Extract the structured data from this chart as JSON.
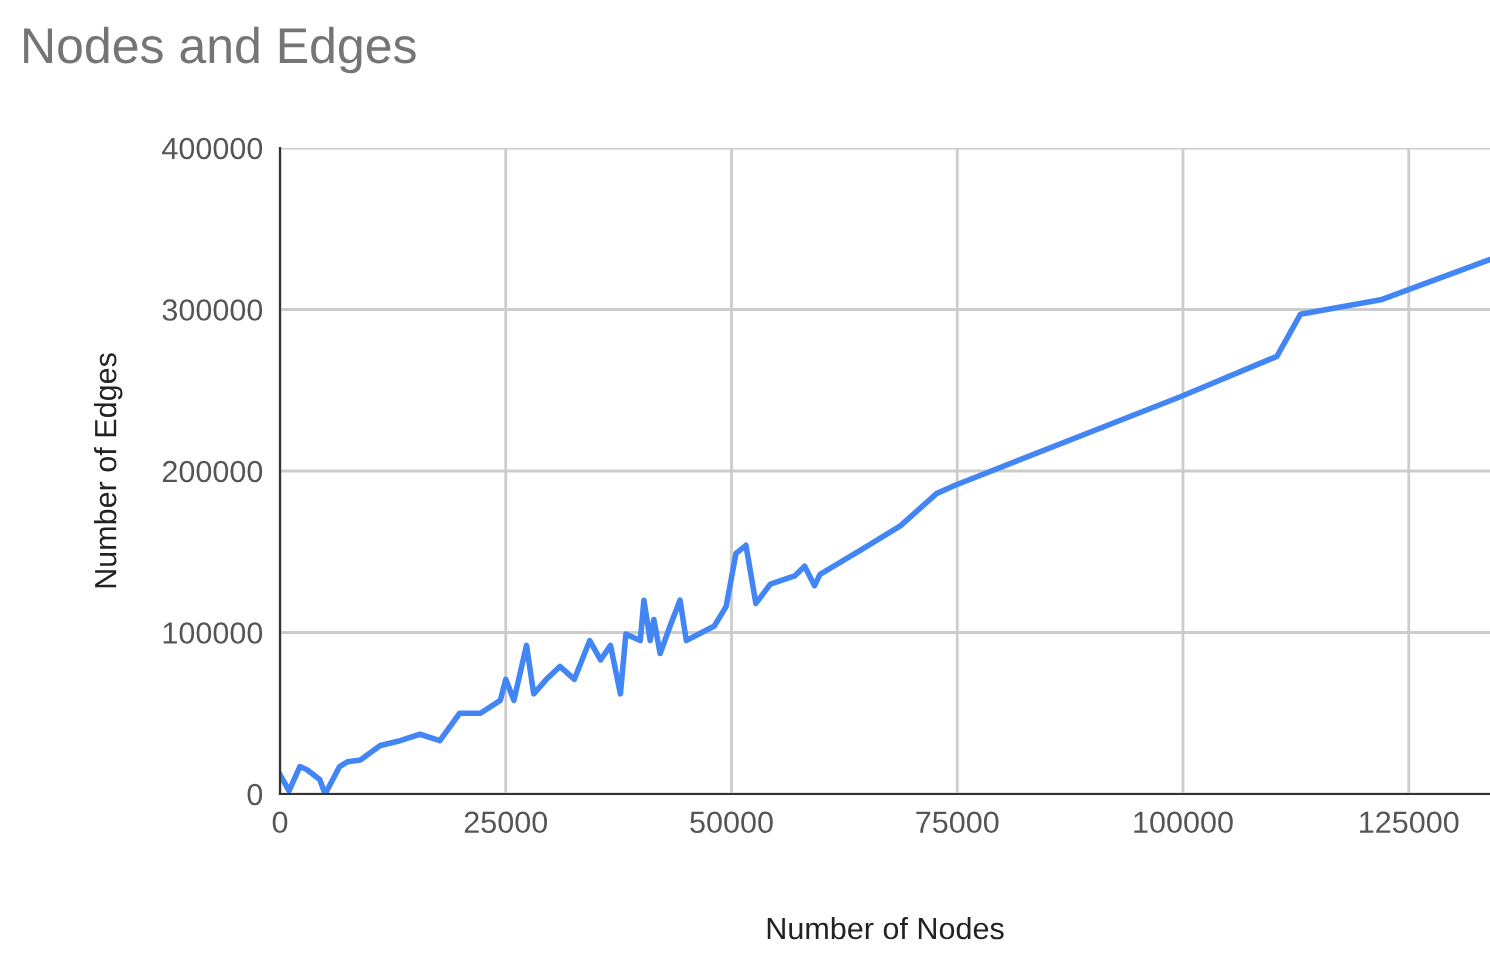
{
  "chart_data": {
    "type": "line",
    "title": "Nodes and Edges",
    "xlabel": "Number of Nodes",
    "ylabel": "Number of Edges",
    "xlim": [
      0,
      134000
    ],
    "ylim": [
      0,
      400000
    ],
    "xticks": [
      0,
      25000,
      50000,
      75000,
      100000,
      125000
    ],
    "yticks": [
      0,
      100000,
      200000,
      300000,
      400000
    ],
    "grid": true,
    "marker": "none",
    "line_style": "solid",
    "series": [
      {
        "color": "#4285f4",
        "x": [
          0,
          1000,
          2200,
          3000,
          4400,
          5000,
          6600,
          7500,
          8900,
          11100,
          13300,
          15500,
          17700,
          19900,
          22200,
          24400,
          25000,
          25900,
          27300,
          28100,
          29500,
          31000,
          32600,
          34300,
          35500,
          36600,
          37700,
          38300,
          39900,
          40300,
          41000,
          41400,
          42100,
          43200,
          44300,
          45000,
          48100,
          49400,
          50500,
          51600,
          52700,
          54300,
          57000,
          58100,
          59200,
          59800,
          64300,
          68700,
          72700,
          74700,
          99700,
          110400,
          113000,
          121900,
          134000
        ],
        "values": [
          12000,
          2000,
          17000,
          15000,
          9000,
          0,
          17000,
          20000,
          21000,
          30000,
          33000,
          37000,
          33000,
          50000,
          50000,
          58000,
          71000,
          58000,
          92000,
          62000,
          71000,
          79000,
          71000,
          95000,
          83000,
          92000,
          62000,
          99000,
          95000,
          120000,
          95000,
          108000,
          87000,
          104000,
          120000,
          95000,
          104000,
          116000,
          149000,
          154000,
          118000,
          130000,
          135000,
          141000,
          129000,
          136000,
          151000,
          166000,
          186000,
          191000,
          246000,
          271000,
          297000,
          306000,
          331000
        ]
      }
    ]
  }
}
